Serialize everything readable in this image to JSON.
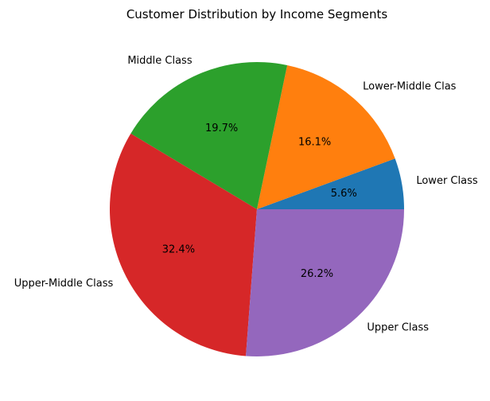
{
  "chart_data": {
    "type": "pie",
    "title": "Customer Distribution by Income Segments",
    "start_angle_deg": 0,
    "direction": "counterclockwise",
    "slices": [
      {
        "label": "Lower Class",
        "value": 5.6,
        "pct_label": "5.6%",
        "color": "#1f77b4"
      },
      {
        "label": "Lower-Middle Clas",
        "value": 16.1,
        "pct_label": "16.1%",
        "color": "#ff7f0e"
      },
      {
        "label": "Middle Class",
        "value": 19.7,
        "pct_label": "19.7%",
        "color": "#2ca02c"
      },
      {
        "label": "Upper-Middle Class",
        "value": 32.4,
        "pct_label": "32.4%",
        "color": "#d62728"
      },
      {
        "label": "Upper Class",
        "value": 26.2,
        "pct_label": "26.2%",
        "color": "#9467bd"
      }
    ]
  }
}
